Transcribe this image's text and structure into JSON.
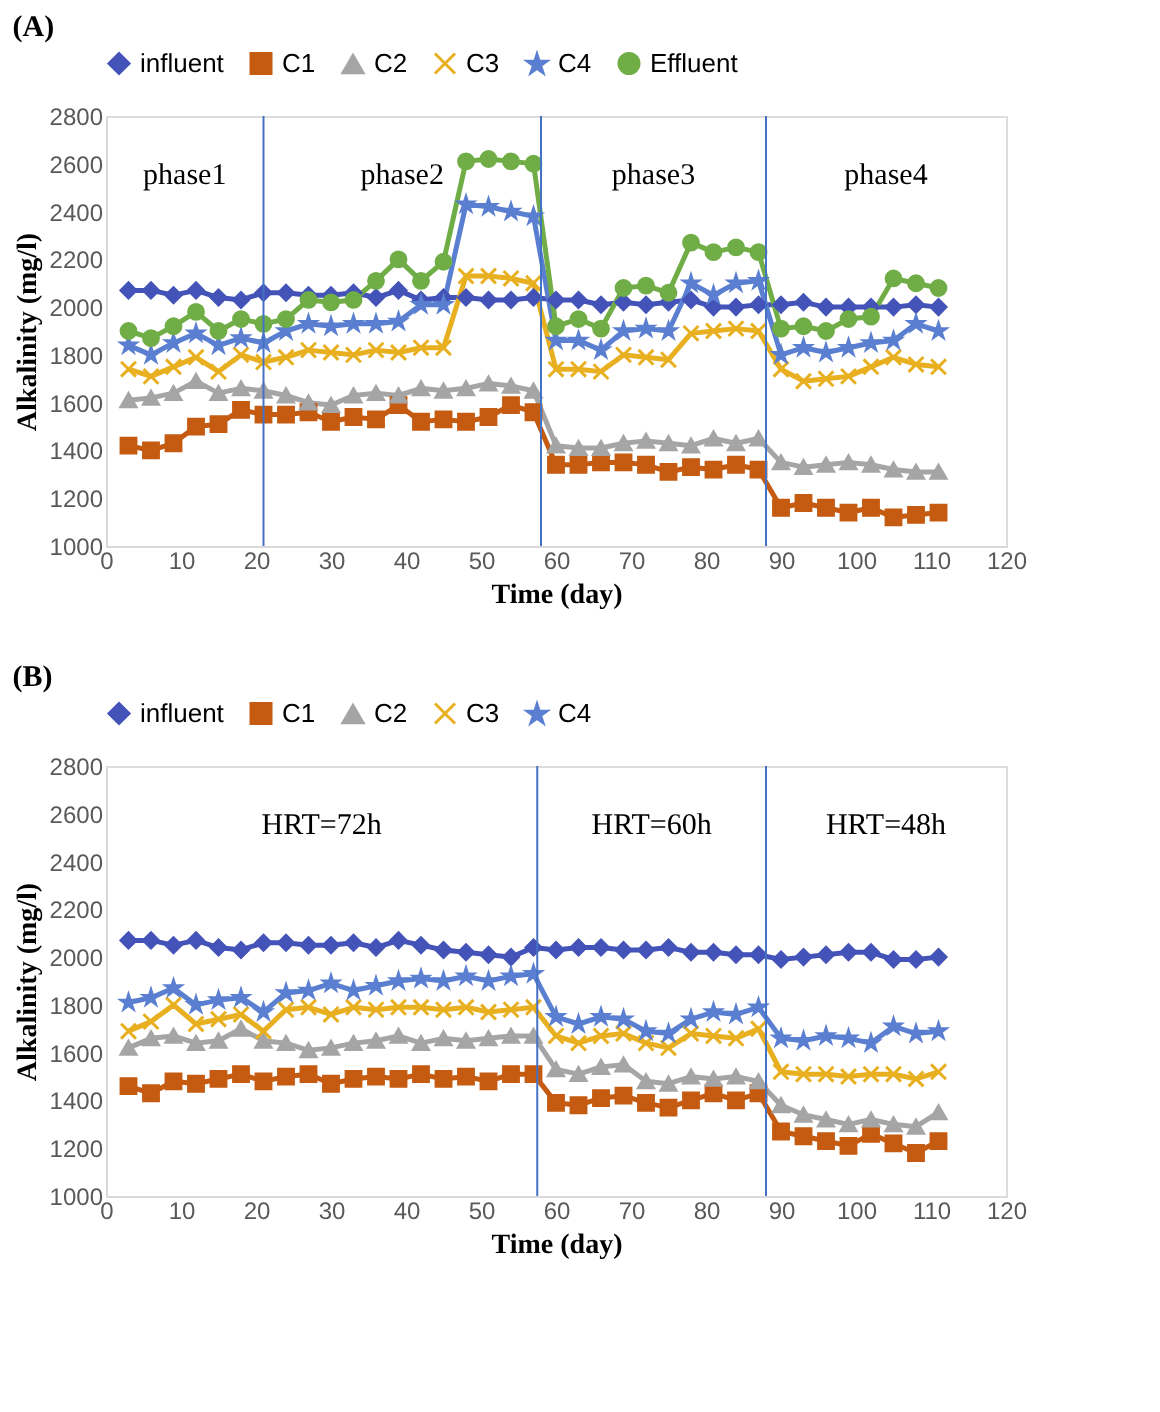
{
  "chart_data": [
    {
      "type": "line",
      "title": "(A)",
      "xlabel": "Time (day)",
      "ylabel": "Alkalinity (mg/l)",
      "x": [
        3,
        6,
        9,
        12,
        15,
        18,
        21,
        24,
        27,
        30,
        33,
        36,
        39,
        42,
        45,
        48,
        51,
        54,
        57,
        60,
        63,
        66,
        69,
        72,
        75,
        78,
        81,
        84,
        87,
        90,
        93,
        96,
        99,
        102,
        105,
        108,
        111
      ],
      "xlim": [
        0,
        120
      ],
      "xticks": [
        0,
        10,
        20,
        30,
        40,
        50,
        60,
        70,
        80,
        90,
        100,
        110,
        120
      ],
      "ylim": [
        1000,
        2800
      ],
      "yticks": [
        1000,
        1200,
        1400,
        1600,
        1800,
        2000,
        2200,
        2400,
        2600,
        2800
      ],
      "grid": false,
      "legend": "top",
      "series": [
        {
          "name": "influent",
          "color": "#4353b8",
          "marker": "diamond",
          "values": [
            2070,
            2070,
            2050,
            2070,
            2040,
            2030,
            2060,
            2060,
            2050,
            2050,
            2060,
            2040,
            2070,
            2030,
            2040,
            2040,
            2030,
            2030,
            2040,
            2030,
            2030,
            2010,
            2020,
            2010,
            2020,
            2030,
            2000,
            2000,
            2010,
            2010,
            2020,
            2000,
            2000,
            2000,
            2000,
            2010,
            2000
          ]
        },
        {
          "name": "C1",
          "color": "#c55a11",
          "marker": "square",
          "values": [
            1420,
            1400,
            1430,
            1500,
            1510,
            1570,
            1550,
            1550,
            1560,
            1520,
            1540,
            1530,
            1590,
            1520,
            1530,
            1520,
            1540,
            1590,
            1560,
            1340,
            1340,
            1350,
            1350,
            1340,
            1310,
            1330,
            1320,
            1340,
            1320,
            1160,
            1180,
            1160,
            1140,
            1160,
            1120,
            1130,
            1140
          ]
        },
        {
          "name": "C2",
          "color": "#a5a5a5",
          "marker": "triangle",
          "values": [
            1610,
            1620,
            1640,
            1690,
            1640,
            1660,
            1650,
            1630,
            1600,
            1590,
            1630,
            1640,
            1630,
            1660,
            1650,
            1660,
            1680,
            1670,
            1650,
            1420,
            1410,
            1410,
            1430,
            1440,
            1430,
            1420,
            1450,
            1430,
            1450,
            1350,
            1330,
            1340,
            1350,
            1340,
            1320,
            1310,
            1310
          ]
        },
        {
          "name": "C3",
          "color": "#e8b020",
          "marker": "cross",
          "values": [
            1740,
            1710,
            1750,
            1790,
            1730,
            1800,
            1770,
            1790,
            1820,
            1810,
            1800,
            1820,
            1810,
            1830,
            1830,
            2130,
            2130,
            2120,
            2100,
            1740,
            1740,
            1730,
            1800,
            1790,
            1780,
            1890,
            1900,
            1910,
            1900,
            1740,
            1690,
            1700,
            1710,
            1750,
            1790,
            1760,
            1750
          ]
        },
        {
          "name": "C4",
          "color": "#5b7fd0",
          "marker": "star",
          "values": [
            1840,
            1800,
            1850,
            1890,
            1840,
            1870,
            1850,
            1900,
            1930,
            1920,
            1930,
            1930,
            1940,
            2010,
            2010,
            2430,
            2420,
            2400,
            2380,
            1860,
            1860,
            1820,
            1900,
            1910,
            1900,
            2100,
            2050,
            2100,
            2110,
            1800,
            1830,
            1810,
            1830,
            1850,
            1860,
            1930,
            1900
          ]
        },
        {
          "name": "Effluent",
          "color": "#70ad47",
          "marker": "circle",
          "values": [
            1900,
            1870,
            1920,
            1980,
            1900,
            1950,
            1930,
            1950,
            2030,
            2020,
            2030,
            2110,
            2200,
            2110,
            2190,
            2610,
            2620,
            2610,
            2600,
            1920,
            1950,
            1910,
            2080,
            2090,
            2060,
            2270,
            2230,
            2250,
            2230,
            1910,
            1920,
            1900,
            1950,
            1960,
            2120,
            2100,
            2080
          ]
        }
      ],
      "ref_lines": [
        {
          "axis": "x",
          "value": 21,
          "color": "#4472c4"
        },
        {
          "axis": "x",
          "value": 58,
          "color": "#4472c4"
        },
        {
          "axis": "x",
          "value": 88,
          "color": "#4472c4"
        }
      ],
      "annotations": [
        "phase1",
        "phase2",
        "phase3",
        "phase4"
      ]
    },
    {
      "type": "line",
      "title": "(B)",
      "xlabel": "Time (day)",
      "ylabel": "Alkalinity (mg/l)",
      "x": [
        3,
        6,
        9,
        12,
        15,
        18,
        21,
        24,
        27,
        30,
        33,
        36,
        39,
        42,
        45,
        48,
        51,
        54,
        57,
        60,
        63,
        66,
        69,
        72,
        75,
        78,
        81,
        84,
        87,
        90,
        93,
        96,
        99,
        102,
        105,
        108,
        111
      ],
      "xlim": [
        0,
        120
      ],
      "xticks": [
        0,
        10,
        20,
        30,
        40,
        50,
        60,
        70,
        80,
        90,
        100,
        110,
        120
      ],
      "ylim": [
        1000,
        2800
      ],
      "yticks": [
        1000,
        1200,
        1400,
        1600,
        1800,
        2000,
        2200,
        2400,
        2600,
        2800
      ],
      "grid": false,
      "legend": "top",
      "series": [
        {
          "name": "influent",
          "color": "#4353b8",
          "marker": "diamond",
          "values": [
            2070,
            2070,
            2050,
            2070,
            2040,
            2030,
            2060,
            2060,
            2050,
            2050,
            2060,
            2040,
            2070,
            2050,
            2030,
            2020,
            2010,
            2000,
            2040,
            2030,
            2040,
            2040,
            2030,
            2030,
            2040,
            2020,
            2020,
            2010,
            2010,
            1990,
            2000,
            2010,
            2020,
            2020,
            1990,
            1990,
            2000
          ]
        },
        {
          "name": "C1",
          "color": "#c55a11",
          "marker": "square",
          "values": [
            1460,
            1430,
            1480,
            1470,
            1490,
            1510,
            1480,
            1500,
            1510,
            1470,
            1490,
            1500,
            1490,
            1510,
            1490,
            1500,
            1480,
            1510,
            1510,
            1390,
            1380,
            1410,
            1420,
            1390,
            1370,
            1400,
            1430,
            1400,
            1430,
            1270,
            1250,
            1230,
            1210,
            1260,
            1220,
            1180,
            1230
          ]
        },
        {
          "name": "C2",
          "color": "#a5a5a5",
          "marker": "triangle",
          "values": [
            1620,
            1660,
            1670,
            1640,
            1650,
            1700,
            1650,
            1640,
            1610,
            1620,
            1640,
            1650,
            1670,
            1640,
            1660,
            1650,
            1660,
            1670,
            1670,
            1530,
            1510,
            1540,
            1550,
            1480,
            1470,
            1500,
            1490,
            1500,
            1480,
            1380,
            1340,
            1320,
            1300,
            1320,
            1300,
            1290,
            1350
          ]
        },
        {
          "name": "C3",
          "color": "#e8b020",
          "marker": "cross",
          "values": [
            1690,
            1730,
            1800,
            1720,
            1740,
            1760,
            1690,
            1780,
            1790,
            1760,
            1790,
            1780,
            1790,
            1790,
            1780,
            1790,
            1770,
            1780,
            1790,
            1670,
            1640,
            1670,
            1680,
            1640,
            1620,
            1680,
            1670,
            1660,
            1700,
            1520,
            1510,
            1510,
            1500,
            1510,
            1510,
            1490,
            1520
          ]
        },
        {
          "name": "C4",
          "color": "#5b7fd0",
          "marker": "star",
          "values": [
            1810,
            1830,
            1870,
            1800,
            1820,
            1830,
            1770,
            1850,
            1860,
            1890,
            1860,
            1880,
            1900,
            1910,
            1900,
            1920,
            1900,
            1920,
            1930,
            1750,
            1720,
            1750,
            1740,
            1690,
            1680,
            1740,
            1770,
            1760,
            1790,
            1660,
            1650,
            1670,
            1660,
            1640,
            1710,
            1680,
            1690
          ]
        }
      ],
      "ref_lines": [
        {
          "axis": "x",
          "value": 57.5,
          "color": "#4472c4"
        },
        {
          "axis": "x",
          "value": 88,
          "color": "#4472c4"
        }
      ],
      "annotations": [
        "HRT=72h",
        "HRT=60h",
        "HRT=48h"
      ]
    }
  ]
}
